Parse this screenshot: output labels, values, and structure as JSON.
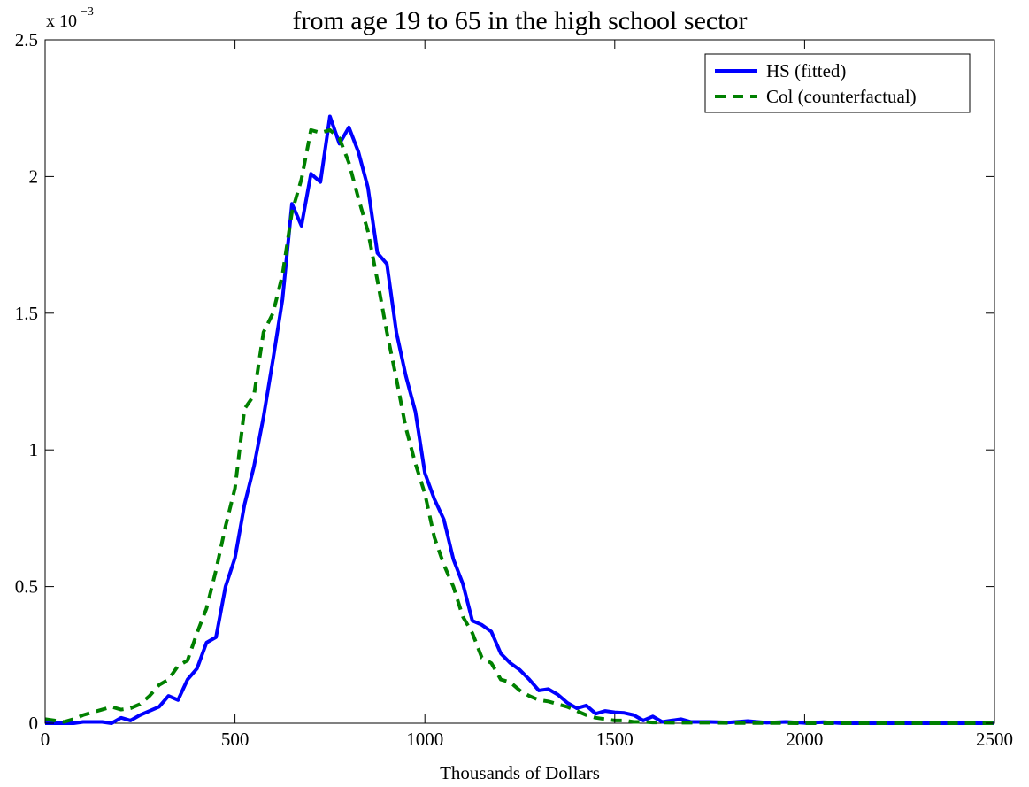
{
  "chart_data": {
    "type": "line",
    "title": "from age 19 to 65 in the high school sector",
    "xlabel": "Thousands of Dollars",
    "ylabel": "",
    "y_scale_label": "x 10",
    "y_scale_exponent": "−3",
    "xlim": [
      0,
      2500
    ],
    "ylim": [
      0,
      2.5
    ],
    "xticks": [
      0,
      500,
      1000,
      1500,
      2000,
      2500
    ],
    "yticks": [
      0,
      0.5,
      1,
      1.5,
      2,
      2.5
    ],
    "xtick_labels": [
      "0",
      "500",
      "1000",
      "1500",
      "2000",
      "2500"
    ],
    "ytick_labels": [
      "0",
      "0.5",
      "1",
      "1.5",
      "2",
      "2.5"
    ],
    "legend_position": "top-right",
    "grid": false,
    "series": [
      {
        "name": "HS (fitted)",
        "color": "#0000ff",
        "style": "solid",
        "points": [
          [
            0,
            0.0
          ],
          [
            25,
            0.0
          ],
          [
            50,
            0.0
          ],
          [
            75,
            0.0
          ],
          [
            100,
            0.005
          ],
          [
            125,
            0.005
          ],
          [
            150,
            0.005
          ],
          [
            175,
            0.0
          ],
          [
            200,
            0.02
          ],
          [
            225,
            0.01
          ],
          [
            250,
            0.03
          ],
          [
            275,
            0.045
          ],
          [
            300,
            0.06
          ],
          [
            325,
            0.1
          ],
          [
            350,
            0.085
          ],
          [
            375,
            0.16
          ],
          [
            400,
            0.2
          ],
          [
            425,
            0.295
          ],
          [
            450,
            0.315
          ],
          [
            475,
            0.5
          ],
          [
            500,
            0.605
          ],
          [
            525,
            0.8
          ],
          [
            550,
            0.94
          ],
          [
            575,
            1.12
          ],
          [
            600,
            1.33
          ],
          [
            625,
            1.55
          ],
          [
            650,
            1.9
          ],
          [
            675,
            1.82
          ],
          [
            700,
            2.01
          ],
          [
            725,
            1.98
          ],
          [
            750,
            2.22
          ],
          [
            775,
            2.12
          ],
          [
            800,
            2.18
          ],
          [
            825,
            2.09
          ],
          [
            850,
            1.96
          ],
          [
            875,
            1.72
          ],
          [
            900,
            1.68
          ],
          [
            925,
            1.43
          ],
          [
            950,
            1.27
          ],
          [
            975,
            1.14
          ],
          [
            1000,
            0.915
          ],
          [
            1025,
            0.82
          ],
          [
            1050,
            0.745
          ],
          [
            1075,
            0.6
          ],
          [
            1100,
            0.51
          ],
          [
            1125,
            0.375
          ],
          [
            1150,
            0.36
          ],
          [
            1175,
            0.335
          ],
          [
            1200,
            0.255
          ],
          [
            1225,
            0.22
          ],
          [
            1250,
            0.195
          ],
          [
            1275,
            0.16
          ],
          [
            1300,
            0.12
          ],
          [
            1325,
            0.125
          ],
          [
            1350,
            0.105
          ],
          [
            1375,
            0.075
          ],
          [
            1400,
            0.055
          ],
          [
            1425,
            0.065
          ],
          [
            1450,
            0.035
          ],
          [
            1475,
            0.045
          ],
          [
            1500,
            0.04
          ],
          [
            1525,
            0.038
          ],
          [
            1550,
            0.03
          ],
          [
            1575,
            0.01
          ],
          [
            1600,
            0.025
          ],
          [
            1625,
            0.005
          ],
          [
            1650,
            0.01
          ],
          [
            1675,
            0.015
          ],
          [
            1700,
            0.005
          ],
          [
            1750,
            0.005
          ],
          [
            1800,
            0.003
          ],
          [
            1850,
            0.008
          ],
          [
            1900,
            0.002
          ],
          [
            1950,
            0.005
          ],
          [
            2000,
            0.001
          ],
          [
            2050,
            0.004
          ],
          [
            2100,
            0.0
          ],
          [
            2200,
            0.0
          ],
          [
            2300,
            0.0
          ],
          [
            2400,
            0.0
          ],
          [
            2500,
            0.0
          ]
        ]
      },
      {
        "name": "Col (counterfactual)",
        "color": "#008000",
        "style": "dashed",
        "points": [
          [
            0,
            0.015
          ],
          [
            25,
            0.01
          ],
          [
            50,
            0.005
          ],
          [
            75,
            0.015
          ],
          [
            100,
            0.03
          ],
          [
            125,
            0.04
          ],
          [
            150,
            0.05
          ],
          [
            175,
            0.06
          ],
          [
            200,
            0.05
          ],
          [
            225,
            0.055
          ],
          [
            250,
            0.07
          ],
          [
            275,
            0.1
          ],
          [
            300,
            0.14
          ],
          [
            325,
            0.16
          ],
          [
            350,
            0.21
          ],
          [
            375,
            0.23
          ],
          [
            400,
            0.33
          ],
          [
            425,
            0.42
          ],
          [
            450,
            0.56
          ],
          [
            475,
            0.72
          ],
          [
            500,
            0.86
          ],
          [
            525,
            1.15
          ],
          [
            550,
            1.2
          ],
          [
            575,
            1.43
          ],
          [
            600,
            1.5
          ],
          [
            625,
            1.64
          ],
          [
            650,
            1.87
          ],
          [
            675,
            1.99
          ],
          [
            700,
            2.17
          ],
          [
            725,
            2.16
          ],
          [
            750,
            2.17
          ],
          [
            775,
            2.14
          ],
          [
            800,
            2.05
          ],
          [
            825,
            1.92
          ],
          [
            850,
            1.8
          ],
          [
            875,
            1.62
          ],
          [
            900,
            1.43
          ],
          [
            925,
            1.26
          ],
          [
            950,
            1.08
          ],
          [
            975,
            0.95
          ],
          [
            1000,
            0.84
          ],
          [
            1025,
            0.68
          ],
          [
            1050,
            0.58
          ],
          [
            1075,
            0.5
          ],
          [
            1100,
            0.39
          ],
          [
            1125,
            0.33
          ],
          [
            1150,
            0.24
          ],
          [
            1175,
            0.22
          ],
          [
            1200,
            0.16
          ],
          [
            1225,
            0.15
          ],
          [
            1250,
            0.12
          ],
          [
            1275,
            0.1
          ],
          [
            1300,
            0.085
          ],
          [
            1325,
            0.08
          ],
          [
            1350,
            0.07
          ],
          [
            1375,
            0.06
          ],
          [
            1400,
            0.045
          ],
          [
            1425,
            0.03
          ],
          [
            1450,
            0.02
          ],
          [
            1475,
            0.015
          ],
          [
            1500,
            0.01
          ],
          [
            1525,
            0.01
          ],
          [
            1550,
            0.005
          ],
          [
            1575,
            0.005
          ],
          [
            1600,
            0.003
          ],
          [
            1650,
            0.002
          ],
          [
            1700,
            0.002
          ],
          [
            1750,
            0.002
          ],
          [
            1800,
            0.001
          ],
          [
            1900,
            0.001
          ],
          [
            2000,
            0.0
          ],
          [
            2100,
            0.0
          ],
          [
            2200,
            0.0
          ],
          [
            2300,
            0.0
          ],
          [
            2400,
            0.0
          ],
          [
            2500,
            0.0
          ]
        ]
      }
    ]
  }
}
